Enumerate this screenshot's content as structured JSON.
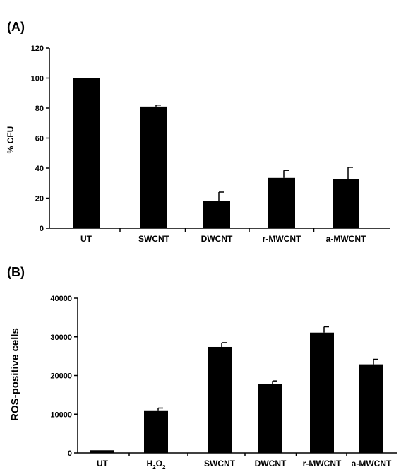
{
  "chart_data": [
    {
      "type": "bar",
      "panel_label": "(A)",
      "categories": [
        "UT",
        "SWCNT",
        "DWCNT",
        "r-MWCNT",
        "a-MWCNT"
      ],
      "values": [
        100,
        81,
        18,
        33.5,
        32.5
      ],
      "error": [
        0,
        1,
        6,
        5,
        8
      ],
      "ylabel": "% CFU",
      "ylim": [
        0,
        120
      ],
      "yticks": [
        0,
        20,
        40,
        60,
        80,
        100,
        120
      ],
      "bar_color": "#000000",
      "grid": false,
      "legend": "none"
    },
    {
      "type": "bar",
      "panel_label": "(B)",
      "categories": [
        "UT",
        "H2O2",
        "SWCNT",
        "DWCNT",
        "r-MWCNT",
        "a-MWCNT"
      ],
      "values": [
        600,
        11000,
        27400,
        17800,
        31100,
        22900
      ],
      "error": [
        0,
        600,
        1100,
        800,
        1500,
        1300
      ],
      "ylabel": "ROS-positive cells",
      "ylim": [
        0,
        40000
      ],
      "yticks": [
        0,
        10000,
        20000,
        30000,
        40000
      ],
      "bar_color": "#000000",
      "grid": false,
      "legend": "none"
    }
  ]
}
